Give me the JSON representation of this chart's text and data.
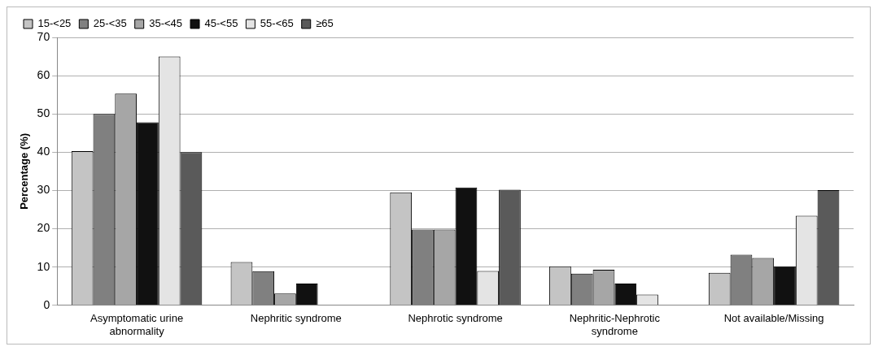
{
  "chart_data": {
    "type": "bar",
    "ylabel": "Percentage (%)",
    "categories": [
      "Asymptomatic urine abnormality",
      "Nephritic syndrome",
      "Nephrotic syndrome",
      "Nephritic-Nephrotic syndrome",
      "Not available/Missing"
    ],
    "series": [
      {
        "name": "15-<25",
        "color": "#c4c4c4",
        "values": [
          40.3,
          11.3,
          29.5,
          10.2,
          8.5
        ]
      },
      {
        "name": "25-<35",
        "color": "#808080",
        "values": [
          50,
          8.9,
          19.8,
          8.3,
          13.2
        ]
      },
      {
        "name": "35-<45",
        "color": "#a6a6a6",
        "values": [
          55.3,
          3.1,
          19.8,
          9.3,
          12.4
        ]
      },
      {
        "name": "45-<55",
        "color": "#111111",
        "values": [
          47.8,
          5.7,
          30.8,
          5.7,
          10.2
        ]
      },
      {
        "name": "55-<65",
        "color": "#e4e4e4",
        "values": [
          65,
          null,
          9.0,
          2.8,
          23.4
        ]
      },
      {
        "name": "≥65",
        "color": "#5a5a5a",
        "values": [
          40,
          null,
          30.2,
          null,
          30.1
        ]
      }
    ],
    "ylim": [
      0,
      70
    ],
    "yticks": [
      0,
      10,
      20,
      30,
      40,
      50,
      60,
      70
    ],
    "grid": "y",
    "legend": "top left"
  }
}
